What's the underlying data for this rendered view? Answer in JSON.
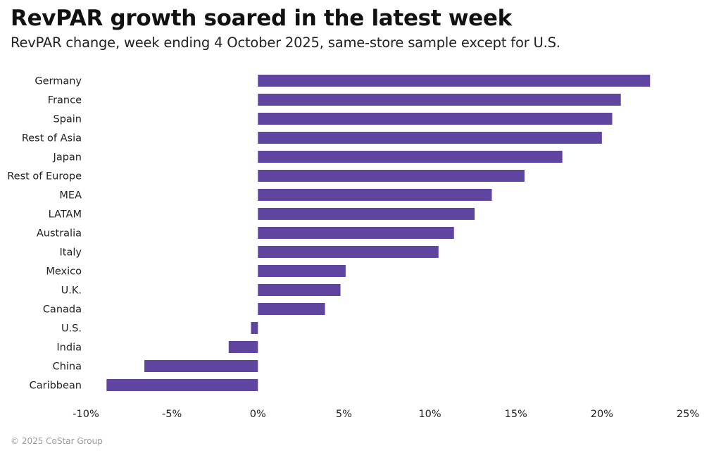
{
  "header": {
    "title": "RevPAR growth soared in the latest week",
    "subtitle": "RevPAR change, week ending 4 October 2025, same-store sample except for U.S."
  },
  "footer": {
    "copyright": "© 2025 CoStar Group"
  },
  "colors": {
    "bar": "#5f45a0"
  },
  "chart_data": {
    "type": "bar",
    "orientation": "horizontal",
    "title": "RevPAR growth soared in the latest week",
    "subtitle": "RevPAR change, week ending 4 October 2025, same-store sample except for U.S.",
    "xlabel": "",
    "ylabel": "",
    "categories": [
      "Germany",
      "France",
      "Spain",
      "Rest of Asia",
      "Japan",
      "Rest of Europe",
      "MEA",
      "LATAM",
      "Australia",
      "Italy",
      "Mexico",
      "U.K.",
      "Canada",
      "U.S.",
      "India",
      "China",
      "Caribbean"
    ],
    "values": [
      22.8,
      21.1,
      20.6,
      20.0,
      17.7,
      15.5,
      13.6,
      12.6,
      11.4,
      10.5,
      5.1,
      4.8,
      3.9,
      -0.4,
      -1.7,
      -6.6,
      -8.8
    ],
    "unit": "%",
    "xlim": [
      -10,
      25
    ],
    "xticks": [
      -10,
      -5,
      0,
      5,
      10,
      15,
      20,
      25
    ],
    "xtick_labels": [
      "-10%",
      "-5%",
      "0%",
      "5%",
      "10%",
      "15%",
      "20%",
      "25%"
    ],
    "grid": false,
    "legend": "none"
  }
}
